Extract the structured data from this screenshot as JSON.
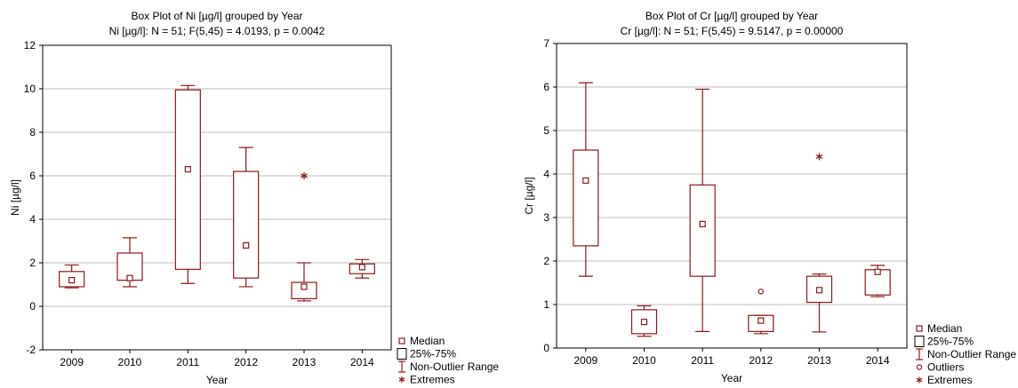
{
  "chart_data": [
    {
      "type": "box",
      "title": "Box Plot of Ni [µg/l] grouped by  Year",
      "subtitle": "Ni [µg/l]:   N = 51;  F(5,45) = 4.0193, p = 0.0042",
      "xlabel": "Year",
      "ylabel": "Ni [µg/l]",
      "ylim": [
        -2,
        12
      ],
      "yticks": [
        "-2",
        "0",
        "2",
        "4",
        "6",
        "8",
        "10",
        "12"
      ],
      "grid": true,
      "categories": [
        "2009",
        "2010",
        "2011",
        "2012",
        "2013",
        "2014"
      ],
      "boxes": [
        {
          "category": "2009",
          "median": 1.2,
          "q1": 0.9,
          "q3": 1.6,
          "whisker_low": 0.85,
          "whisker_high": 1.9
        },
        {
          "category": "2010",
          "median": 1.3,
          "q1": 1.2,
          "q3": 2.45,
          "whisker_low": 0.9,
          "whisker_high": 3.15
        },
        {
          "category": "2011",
          "median": 6.3,
          "q1": 1.7,
          "q3": 9.95,
          "whisker_low": 1.05,
          "whisker_high": 10.15
        },
        {
          "category": "2012",
          "median": 2.8,
          "q1": 1.3,
          "q3": 6.2,
          "whisker_low": 0.9,
          "whisker_high": 7.3
        },
        {
          "category": "2013",
          "median": 0.9,
          "q1": 0.35,
          "q3": 1.1,
          "whisker_low": 0.25,
          "whisker_high": 2.0
        },
        {
          "category": "2014",
          "median": 1.8,
          "q1": 1.5,
          "q3": 1.95,
          "whisker_low": 1.3,
          "whisker_high": 2.15
        }
      ],
      "outliers": [],
      "extremes": [
        {
          "category": "2013",
          "value": 6.0
        }
      ],
      "legend": [
        "Median",
        "25%-75%",
        "Non-Outlier Range",
        "Extremes"
      ],
      "legend_placement": "bottom-right outside"
    },
    {
      "type": "box",
      "title": "Box Plot of Cr [µg/l] grouped by  Year",
      "subtitle": "Cr [µg/l]:   N = 51;  F(5,45) = 9.5147, p = 0.00000",
      "xlabel": "Year",
      "ylabel": "Cr [µg/l]",
      "ylim": [
        0,
        7
      ],
      "yticks": [
        "0",
        "1",
        "2",
        "3",
        "4",
        "5",
        "6",
        "7"
      ],
      "grid": true,
      "categories": [
        "2009",
        "2010",
        "2011",
        "2012",
        "2013",
        "2014"
      ],
      "boxes": [
        {
          "category": "2009",
          "median": 3.85,
          "q1": 2.35,
          "q3": 4.55,
          "whisker_low": 1.65,
          "whisker_high": 6.1
        },
        {
          "category": "2010",
          "median": 0.6,
          "q1": 0.33,
          "q3": 0.88,
          "whisker_low": 0.27,
          "whisker_high": 0.97
        },
        {
          "category": "2011",
          "median": 2.85,
          "q1": 1.65,
          "q3": 3.75,
          "whisker_low": 0.38,
          "whisker_high": 5.95
        },
        {
          "category": "2012",
          "median": 0.63,
          "q1": 0.38,
          "q3": 0.75,
          "whisker_low": 0.33,
          "whisker_high": 0.75
        },
        {
          "category": "2013",
          "median": 1.33,
          "q1": 1.05,
          "q3": 1.65,
          "whisker_low": 0.37,
          "whisker_high": 1.7
        },
        {
          "category": "2014",
          "median": 1.75,
          "q1": 1.22,
          "q3": 1.8,
          "whisker_low": 1.18,
          "whisker_high": 1.9
        }
      ],
      "outliers": [
        {
          "category": "2012",
          "value": 1.3
        }
      ],
      "extremes": [
        {
          "category": "2013",
          "value": 4.4
        }
      ],
      "legend": [
        "Median",
        "25%-75%",
        "Non-Outlier Range",
        "Outliers",
        "Extremes"
      ],
      "legend_placement": "bottom-right outside"
    }
  ],
  "colors": {
    "mark": "#8b1a1a",
    "grid": "#bdbdbd",
    "text": "#000000",
    "frame": "#000000"
  }
}
